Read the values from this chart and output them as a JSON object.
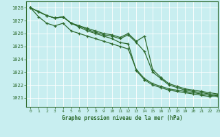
{
  "title": "Graphe pression niveau de la mer (hPa)",
  "bg_color": "#c8eef0",
  "grid_color": "#ffffff",
  "grid_minor_color": "#ddeef0",
  "line_color": "#2d6a2d",
  "xlim": [
    -0.5,
    23
  ],
  "ylim": [
    1020.3,
    1028.5
  ],
  "yticks": [
    1021,
    1022,
    1023,
    1024,
    1025,
    1026,
    1027,
    1028
  ],
  "xticks": [
    0,
    1,
    2,
    3,
    4,
    5,
    6,
    7,
    8,
    9,
    10,
    11,
    12,
    13,
    14,
    15,
    16,
    17,
    18,
    19,
    20,
    21,
    22,
    23
  ],
  "series": [
    [
      1028.0,
      1027.7,
      1027.4,
      1027.2,
      1027.3,
      1026.8,
      1026.5,
      1026.2,
      1026.0,
      1025.8,
      1025.6,
      1025.3,
      1025.2,
      1023.1,
      1022.4,
      1022.0,
      1021.8,
      1021.6,
      1021.5,
      1021.4,
      1021.3,
      1021.2,
      1021.1,
      1021.2
    ],
    [
      1028.0,
      1027.7,
      1027.4,
      1027.2,
      1027.3,
      1026.8,
      1026.6,
      1026.3,
      1026.1,
      1025.9,
      1025.8,
      1025.6,
      1025.9,
      1025.3,
      1024.6,
      1023.0,
      1022.5,
      1022.0,
      1021.8,
      1021.6,
      1021.5,
      1021.4,
      1021.3,
      1021.2
    ],
    [
      1028.0,
      1027.7,
      1027.4,
      1027.2,
      1027.3,
      1026.8,
      1026.6,
      1026.4,
      1026.2,
      1026.0,
      1025.9,
      1025.7,
      1026.0,
      1025.4,
      1025.8,
      1023.2,
      1022.6,
      1022.1,
      1021.9,
      1021.7,
      1021.6,
      1021.5,
      1021.4,
      1021.3
    ],
    [
      1028.0,
      1027.3,
      1026.8,
      1026.6,
      1026.8,
      1026.2,
      1026.0,
      1025.8,
      1025.6,
      1025.4,
      1025.2,
      1025.0,
      1024.8,
      1023.2,
      1022.5,
      1022.1,
      1021.9,
      1021.7,
      1021.6,
      1021.5,
      1021.4,
      1021.3,
      1021.2,
      1021.1
    ]
  ]
}
